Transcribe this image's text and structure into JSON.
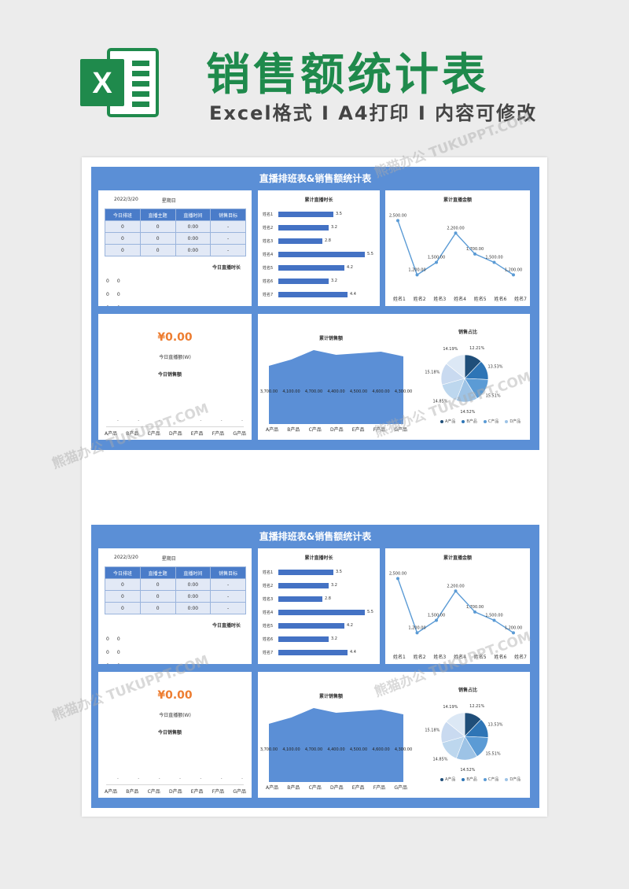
{
  "header": {
    "title": "销售额统计表",
    "subtitle": "Excel格式 I A4打印 I 内容可修改",
    "logo_letter": "X"
  },
  "watermark": "熊猫办公 TUKUPPT.COM",
  "colors": {
    "brand_green": "#1f8a4c",
    "dashboard_blue": "#5b8fd6",
    "bar_blue": "#4472c4",
    "money_orange": "#ed7d31"
  },
  "dashboard": {
    "title": "直播排班表&销售额统计表",
    "date": "2022/3/20",
    "weekday": "星期日",
    "schedule": {
      "headers": [
        "今日排班",
        "直播主题",
        "直播时间",
        "销售目标"
      ],
      "rows": [
        [
          "0",
          "0",
          "0:00",
          "-"
        ],
        [
          "0",
          "0",
          "0:00",
          "-"
        ],
        [
          "0",
          "0",
          "0:00",
          "-"
        ]
      ]
    },
    "today_duration_label": "今日直播时长",
    "zero_list": [
      [
        "0",
        "0"
      ],
      [
        "0",
        "0"
      ],
      [
        "0",
        "0"
      ]
    ],
    "money": {
      "value": "¥0.00",
      "label": "今日直播额(W)",
      "sales_label": "今日销售额",
      "dashes": [
        "-",
        "-",
        "-",
        "-",
        "-",
        "-",
        "-"
      ],
      "x_labels": [
        "A产品",
        "B产品",
        "C产品",
        "D产品",
        "E产品",
        "F产品",
        "G产品"
      ]
    }
  },
  "chart_data": [
    {
      "type": "bar",
      "orientation": "horizontal",
      "title": "累计直播时长",
      "categories": [
        "姓名1",
        "姓名2",
        "姓名3",
        "姓名4",
        "姓名5",
        "姓名6",
        "姓名7"
      ],
      "values": [
        3.5,
        3.2,
        2.8,
        5.5,
        4.2,
        3.2,
        4.4
      ]
    },
    {
      "type": "line",
      "title": "累计直播金额",
      "categories": [
        "姓名1",
        "姓名2",
        "姓名3",
        "姓名4",
        "姓名5",
        "姓名6",
        "姓名7"
      ],
      "values": [
        2500,
        1200,
        1500,
        2200,
        1700,
        1500,
        1200
      ],
      "value_labels": [
        "2,500.00",
        "1,200.00",
        "1,500.00",
        "2,200.00",
        "1,700.00",
        "1,500.00",
        "1,200.00"
      ]
    },
    {
      "type": "area",
      "title": "累计销售额",
      "categories": [
        "A产品",
        "B产品",
        "C产品",
        "D产品",
        "E产品",
        "F产品",
        "G产品"
      ],
      "values": [
        3700,
        4100,
        4700,
        4400,
        4500,
        4600,
        4300
      ],
      "value_labels": [
        "3,700.00",
        "4,100.00",
        "4,700.00",
        "4,400.00",
        "4,500.00",
        "4,600.00",
        "4,300.00"
      ]
    },
    {
      "type": "pie",
      "title": "销售占比",
      "categories": [
        "A产品",
        "B产品",
        "C产品",
        "D产品",
        "E产品",
        "F产品",
        "G产品"
      ],
      "values": [
        12.21,
        13.53,
        15.51,
        14.52,
        14.85,
        15.18,
        14.19
      ],
      "value_labels": [
        "12.21%",
        "13.53%",
        "15.51%",
        "14.52%",
        "14.85%",
        "15.18%",
        "14.19%"
      ],
      "legend": [
        "A产品",
        "B产品",
        "C产品",
        "D产品"
      ],
      "colors": [
        "#1f4e79",
        "#2e75b6",
        "#5b9bd5",
        "#9dc3e6",
        "#bdd7ee",
        "#c9daf0",
        "#dce8f5"
      ]
    }
  ]
}
